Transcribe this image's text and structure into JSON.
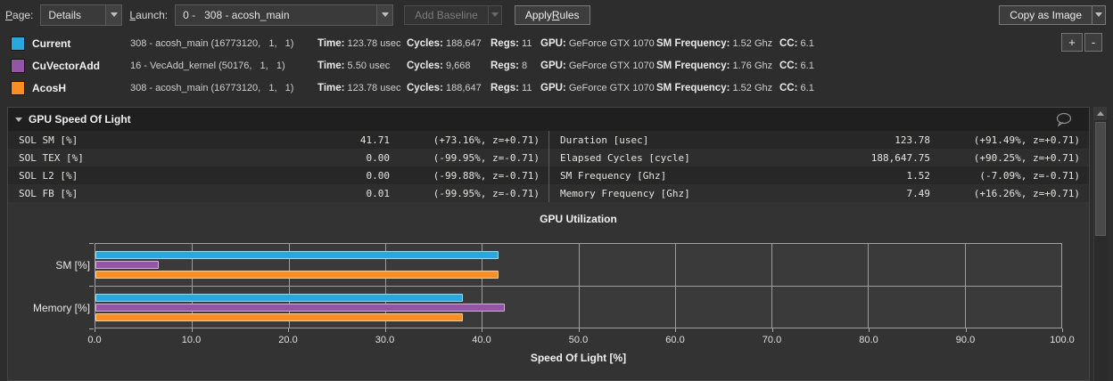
{
  "toolbar": {
    "page_label": "Page:",
    "page_value": "Details",
    "launch_label": "Launch:",
    "launch_value": "0 -   308 - acosh_main",
    "add_baseline_label": "Add Baseline",
    "apply_rules_label": "Apply Rules",
    "copy_as_image_label": "Copy as Image"
  },
  "baselines": {
    "add_button": "+",
    "remove_button": "-",
    "rows": [
      {
        "color": "#29a8de",
        "name": "Current",
        "kernel": "308 - acosh_main (16773120,   1,   1)",
        "time_label": "Time:",
        "time": "123.78 usec",
        "cycles_label": "Cycles:",
        "cycles": "188,647",
        "regs_label": "Regs:",
        "regs": "11",
        "gpu_label": "GPU:",
        "gpu": "GeForce GTX 1070",
        "sm_label": "SM Frequency:",
        "sm": "1.52 Ghz",
        "cc_label": "CC:",
        "cc": "6.1"
      },
      {
        "color": "#9455a6",
        "name": "CuVectorAdd",
        "kernel": "16 - VecAdd_kernel (50176,   1,   1)",
        "time_label": "Time:",
        "time": "5.50 usec",
        "cycles_label": "Cycles:",
        "cycles": "9,668",
        "regs_label": "Regs:",
        "regs": "8",
        "gpu_label": "GPU:",
        "gpu": "GeForce GTX 1070",
        "sm_label": "SM Frequency:",
        "sm": "1.76 Ghz",
        "cc_label": "CC:",
        "cc": "6.1"
      },
      {
        "color": "#f98e25",
        "name": "AcosH",
        "kernel": "308 - acosh_main (16773120,   1,   1)",
        "time_label": "Time:",
        "time": "123.78 usec",
        "cycles_label": "Cycles:",
        "cycles": "188,647",
        "regs_label": "Regs:",
        "regs": "11",
        "gpu_label": "GPU:",
        "gpu": "GeForce GTX 1070",
        "sm_label": "SM Frequency:",
        "sm": "1.52 Ghz",
        "cc_label": "CC:",
        "cc": "6.1"
      }
    ]
  },
  "section": {
    "title": "GPU Speed Of Light",
    "table_left": [
      {
        "name": "SOL SM [%]",
        "value": "41.71",
        "delta": "(+73.16%, z=+0.71)"
      },
      {
        "name": "SOL TEX [%]",
        "value": "0.00",
        "delta": "(-99.95%, z=-0.71)"
      },
      {
        "name": "SOL L2 [%]",
        "value": "0.00",
        "delta": "(-99.88%, z=-0.71)"
      },
      {
        "name": "SOL FB [%]",
        "value": "0.01",
        "delta": "(-99.95%, z=-0.71)"
      }
    ],
    "table_right": [
      {
        "name": "Duration [usec]",
        "value": "123.78",
        "delta": "(+91.49%, z=+0.71)"
      },
      {
        "name": "Elapsed Cycles [cycle]",
        "value": "188,647.75",
        "delta": "(+90.25%, z=+0.71)"
      },
      {
        "name": "SM Frequency [Ghz]",
        "value": "1.52",
        "delta": "(-7.09%, z=-0.71)"
      },
      {
        "name": "Memory Frequency [Ghz]",
        "value": "7.49",
        "delta": "(+16.26%, z=+0.71)"
      }
    ]
  },
  "chart_data": {
    "type": "bar",
    "orientation": "horizontal",
    "title": "GPU Utilization",
    "xlabel": "Speed Of Light [%]",
    "categories": [
      "SM [%]",
      "Memory [%]"
    ],
    "series": [
      {
        "name": "Current",
        "color": "#29a8de",
        "values": [
          41.71,
          38.0
        ]
      },
      {
        "name": "CuVectorAdd",
        "color": "#9455a6",
        "values": [
          6.6,
          42.4
        ]
      },
      {
        "name": "AcosH",
        "color": "#f98e25",
        "values": [
          41.71,
          38.0
        ]
      }
    ],
    "xlim": [
      0,
      100
    ],
    "x_ticks": [
      "0.0",
      "10.0",
      "20.0",
      "30.0",
      "40.0",
      "50.0",
      "60.0",
      "70.0",
      "80.0",
      "90.0",
      "100.0"
    ],
    "grid": true,
    "legend_position": "none"
  }
}
